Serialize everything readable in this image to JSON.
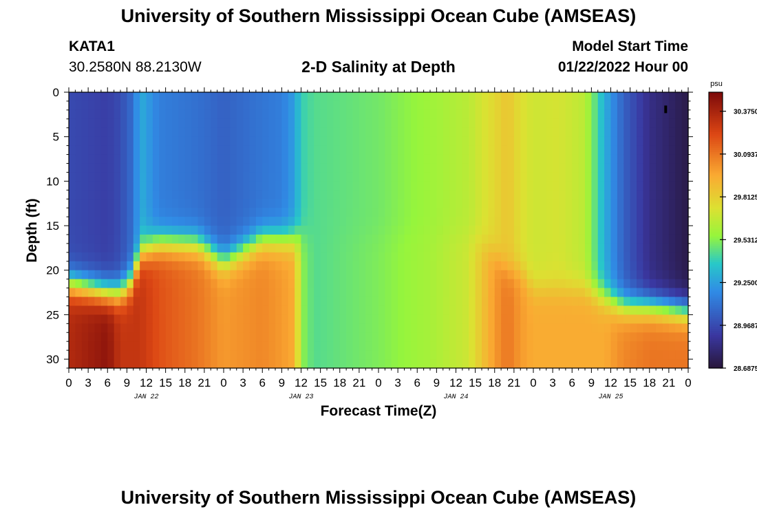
{
  "header": {
    "title": "University of Southern Mississippi Ocean Cube (AMSEAS)",
    "station": "KATA1",
    "coords": "30.2580N  88.2130W",
    "subtitle": "2-D Salinity at Depth",
    "model_start_label": "Model Start Time",
    "model_start_value": "01/22/2022 Hour 00"
  },
  "footer": {
    "title": "University of Southern Mississippi Ocean Cube (AMSEAS)"
  },
  "chart_data": {
    "type": "heatmap",
    "title": "2-D Salinity at Depth",
    "xlabel": "Forecast Time(Z)",
    "ylabel": "Depth (ft)",
    "xlim": [
      0,
      96
    ],
    "ylim": [
      0,
      31
    ],
    "x_tick_labels": [
      "0",
      "3",
      "6",
      "9",
      "12",
      "15",
      "18",
      "21",
      "0",
      "3",
      "6",
      "9",
      "12",
      "15",
      "18",
      "21",
      "0",
      "3",
      "6",
      "9",
      "12",
      "15",
      "18",
      "21",
      "0",
      "3",
      "6",
      "9",
      "12",
      "15",
      "18",
      "21",
      "0"
    ],
    "day_labels": [
      {
        "x": 12,
        "label": "JAN 22"
      },
      {
        "x": 36,
        "label": "JAN 23"
      },
      {
        "x": 60,
        "label": "JAN 24"
      },
      {
        "x": 84,
        "label": "JAN 25"
      }
    ],
    "y_ticks": [
      0,
      5,
      10,
      15,
      20,
      25,
      30
    ],
    "colorbar": {
      "unit": "psu",
      "min": 28.6875,
      "max": 30.5,
      "tick_labels": [
        "30.3750",
        "30.0937",
        "29.8125",
        "29.5312",
        "29.2500",
        "28.9687",
        "28.6875"
      ],
      "tick_values": [
        30.375,
        30.0937,
        29.8125,
        29.5312,
        29.25,
        28.9687,
        28.6875
      ]
    },
    "profiles": [
      {
        "t": 0,
        "surface": 28.97,
        "bottom": 30.35,
        "depth": 21.5
      },
      {
        "t": 6,
        "surface": 28.93,
        "bottom": 30.45,
        "depth": 22.5
      },
      {
        "t": 8,
        "surface": 28.98,
        "bottom": 30.3,
        "depth": 22.5
      },
      {
        "t": 10,
        "surface": 29.1,
        "bottom": 30.3,
        "depth": 21
      },
      {
        "t": 11,
        "surface": 29.3,
        "bottom": 30.3,
        "depth": 18
      },
      {
        "t": 14,
        "surface": 29.15,
        "bottom": 30.2,
        "depth": 17
      },
      {
        "t": 20,
        "surface": 29.1,
        "bottom": 30.1,
        "depth": 17
      },
      {
        "t": 24,
        "surface": 29.05,
        "bottom": 30.0,
        "depth": 19
      },
      {
        "t": 30,
        "surface": 29.12,
        "bottom": 30.05,
        "depth": 16.5
      },
      {
        "t": 33,
        "surface": 29.15,
        "bottom": 30.0,
        "depth": 16.5
      },
      {
        "t": 35,
        "surface": 29.25,
        "bottom": 29.95,
        "depth": 16.5
      },
      {
        "t": 36,
        "surface": 29.4,
        "bottom": 29.55,
        "depth": 16
      },
      {
        "t": 38,
        "surface": 29.45,
        "bottom": 29.45,
        "depth": 16
      },
      {
        "t": 48,
        "surface": 29.5,
        "bottom": 29.52,
        "depth": 16
      },
      {
        "t": 56,
        "surface": 29.58,
        "bottom": 29.6,
        "depth": 16
      },
      {
        "t": 62,
        "surface": 29.65,
        "bottom": 29.7,
        "depth": 16
      },
      {
        "t": 66,
        "surface": 29.78,
        "bottom": 30.0,
        "depth": 18
      },
      {
        "t": 68,
        "surface": 29.85,
        "bottom": 30.1,
        "depth": 20
      },
      {
        "t": 70,
        "surface": 29.75,
        "bottom": 30.0,
        "depth": 20
      },
      {
        "t": 72,
        "surface": 29.7,
        "bottom": 29.95,
        "depth": 22
      },
      {
        "t": 76,
        "surface": 29.72,
        "bottom": 29.95,
        "depth": 22
      },
      {
        "t": 80,
        "surface": 29.65,
        "bottom": 29.95,
        "depth": 22
      },
      {
        "t": 83,
        "surface": 29.3,
        "bottom": 29.95,
        "depth": 23
      },
      {
        "t": 86,
        "surface": 29.05,
        "bottom": 30.05,
        "depth": 24
      },
      {
        "t": 90,
        "surface": 28.85,
        "bottom": 30.1,
        "depth": 24
      },
      {
        "t": 96,
        "surface": 28.72,
        "bottom": 30.1,
        "depth": 24.5
      }
    ]
  }
}
